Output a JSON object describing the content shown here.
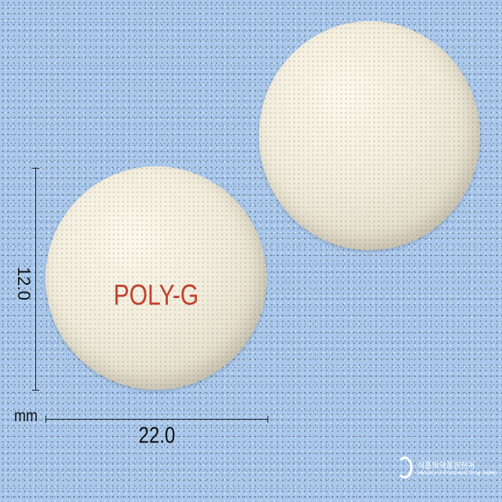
{
  "pills": {
    "front": {
      "imprint": "POLY-G",
      "color": "#f1ecdb",
      "imprint_color": "#c2412e"
    },
    "back": {
      "color": "#f1ecdb"
    }
  },
  "dimensions": {
    "height": "12.0",
    "width": "22.0",
    "unit": "mm"
  },
  "watermark": {
    "icon": "mfds-logo-icon",
    "korean": "식품의약품안전처",
    "english": "Ministry of Food and Drug Safety"
  },
  "background_color": "#a9c8ec"
}
